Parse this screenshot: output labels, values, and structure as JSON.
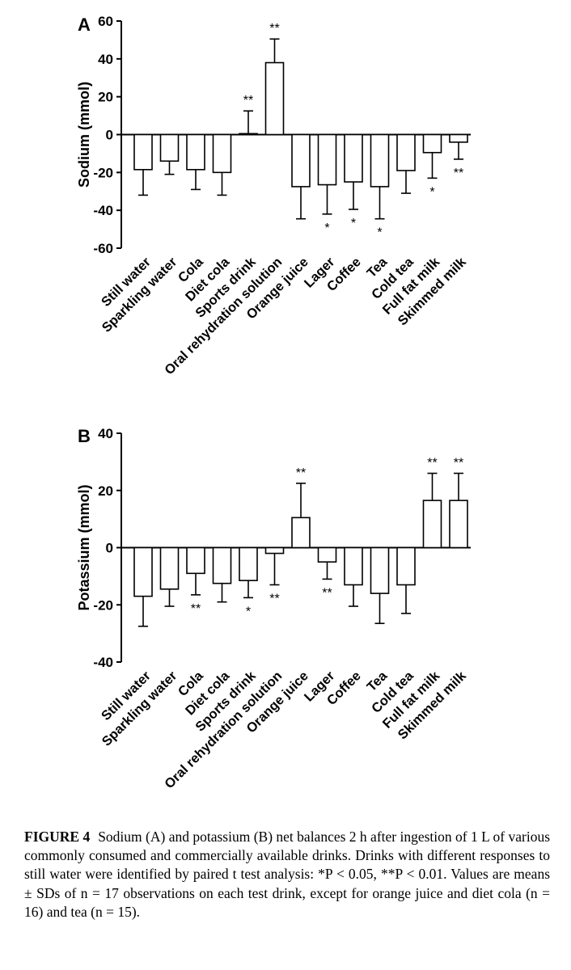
{
  "chart_data": [
    {
      "panel": "A",
      "type": "bar",
      "ylabel": "Sodium (mmol)",
      "ylim": [
        -60,
        60
      ],
      "yticks": [
        60,
        40,
        20,
        0,
        -20,
        -40,
        -60
      ],
      "tick_labels": [
        "60",
        "40",
        "20",
        "0",
        "-20",
        "-40",
        "-60"
      ],
      "categories": [
        "Still water",
        "Sparkling water",
        "Cola",
        "Diet cola",
        "Sports drink",
        "Oral rehydration solution",
        "Orange juice",
        "Lager",
        "Coffee",
        "Tea",
        "Cold tea",
        "Full fat milk",
        "Skimmed milk"
      ],
      "values": [
        -18.5,
        -14,
        -18.5,
        -20,
        0.5,
        38,
        -27.5,
        -26.5,
        -25,
        -27.5,
        -19,
        -9.5,
        -4
      ],
      "sd": [
        13.5,
        7,
        10.5,
        12,
        12,
        12.5,
        17,
        15.5,
        14.5,
        17,
        12,
        13.5,
        9
      ],
      "annotations": [
        "",
        "",
        "",
        "",
        "**",
        "**",
        "",
        "*",
        "*",
        "*",
        "",
        "*",
        "**"
      ]
    },
    {
      "panel": "B",
      "type": "bar",
      "ylabel": "Potassium (mmol)",
      "ylim": [
        -40,
        40
      ],
      "yticks": [
        40,
        20,
        0,
        -20,
        -40
      ],
      "tick_labels": [
        "40",
        "20",
        "0",
        "-20",
        "-40"
      ],
      "categories": [
        "Still water",
        "Sparkling water",
        "Cola",
        "Diet cola",
        "Sports drink",
        "Oral rehydration solution",
        "Orange juice",
        "Lager",
        "Coffee",
        "Tea",
        "Cold tea",
        "Full fat milk",
        "Skimmed milk"
      ],
      "values": [
        -17,
        -14.5,
        -9,
        -12.5,
        -11.5,
        -2,
        10.5,
        -5,
        -13,
        -16,
        -13,
        16.5,
        16.5
      ],
      "sd": [
        10.5,
        6,
        7.5,
        6.5,
        6,
        11,
        12,
        6,
        7.5,
        10.5,
        10,
        9.5,
        9.5
      ],
      "annotations": [
        "",
        "",
        "**",
        "",
        "*",
        "**",
        "**",
        "**",
        "",
        "",
        "",
        "**",
        "**"
      ]
    }
  ],
  "caption": {
    "label": "FIGURE 4",
    "text": "Sodium (A) and potassium (B) net balances 2 h after ingestion of 1 L of various commonly consumed and commercially available drinks. Drinks with different responses to still water were identified by paired t test analysis: *P < 0.05, **P < 0.01. Values are means ± SDs of n = 17 observations on each test drink, except for orange juice and diet cola (n = 16) and tea (n = 15)."
  }
}
